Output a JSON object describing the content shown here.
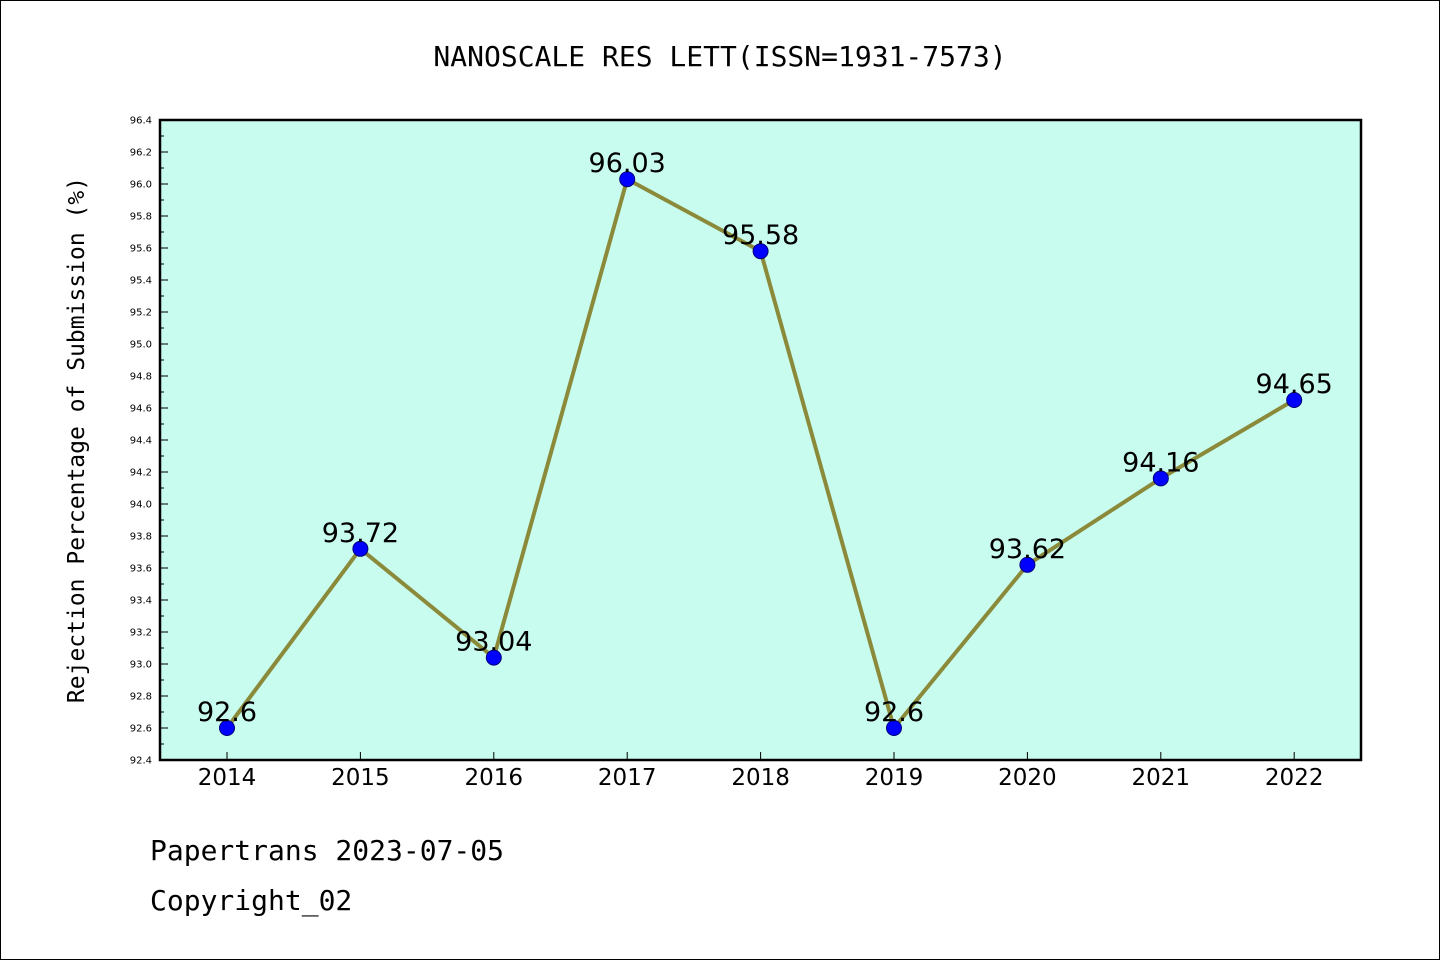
{
  "chart_data": {
    "type": "line",
    "title": "NANOSCALE RES LETT(ISSN=1931-7573)",
    "xlabel": "",
    "ylabel": "Rejection Percentage of Submission (%)",
    "categories": [
      "2014",
      "2015",
      "2016",
      "2017",
      "2018",
      "2019",
      "2020",
      "2021",
      "2022"
    ],
    "values": [
      92.6,
      93.72,
      93.04,
      96.03,
      95.58,
      92.6,
      93.62,
      94.16,
      94.65
    ],
    "data_labels": [
      "92.6",
      "93.72",
      "93.04",
      "96.03",
      "95.58",
      "92.6",
      "93.62",
      "94.16",
      "94.65"
    ],
    "ylim": [
      92.4,
      96.4
    ],
    "yticks": [
      "92.4",
      "92.6",
      "92.8",
      "93.0",
      "93.2",
      "93.4",
      "93.6",
      "93.8",
      "94.0",
      "94.2",
      "94.4",
      "94.6",
      "94.8",
      "95.0",
      "95.2",
      "95.4",
      "95.6",
      "95.8",
      "96.0",
      "96.2",
      "96.4"
    ],
    "grid": false,
    "legend": "none",
    "colors": {
      "plot_background": "#c8fcee",
      "line": "#8b8a3a",
      "marker": "#0000ff"
    }
  },
  "footer": {
    "date_line": "Papertrans 2023-07-05",
    "copyright_line": "Copyright_02"
  }
}
